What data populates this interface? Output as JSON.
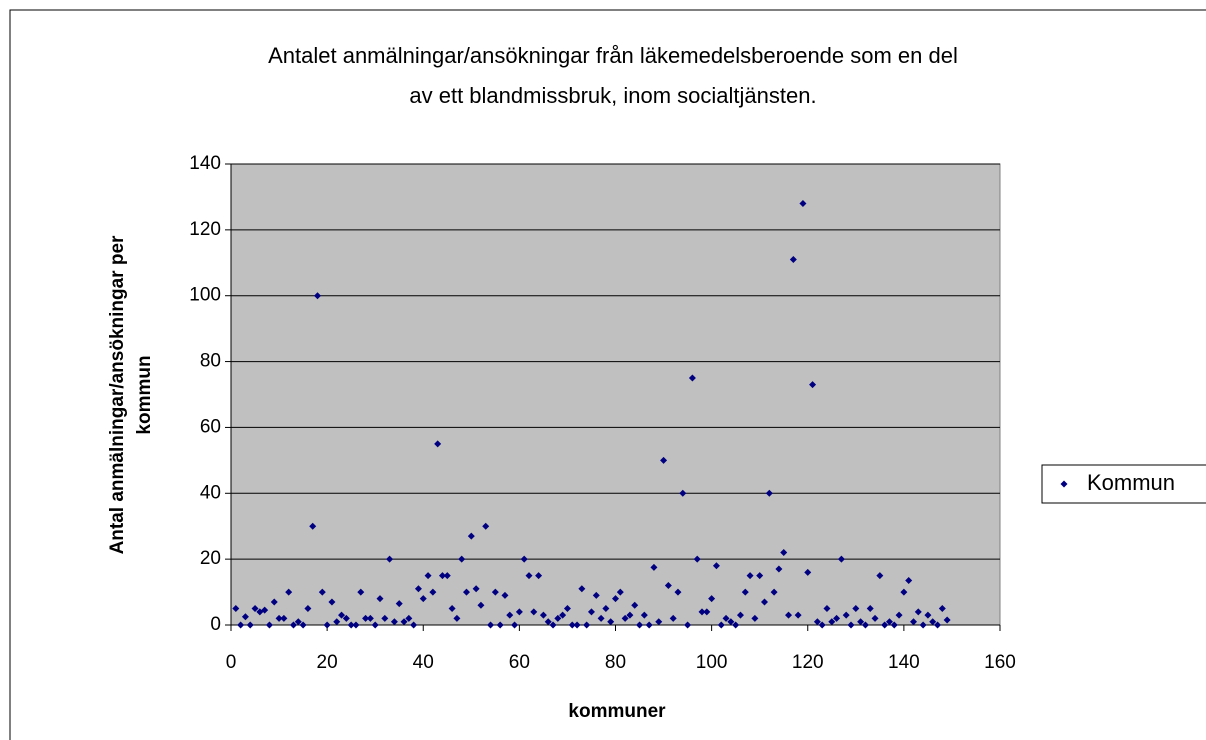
{
  "chart_data": {
    "type": "scatter",
    "title": [
      "Antalet anmälningar/ansökningar från läkemedelsberoende som en del",
      "av ett blandmissbruk, inom socialtjänsten."
    ],
    "xlabel": "kommuner",
    "ylabel": [
      "Antal anmälningar/ansökningar per",
      "kommun"
    ],
    "xlim": [
      0,
      160
    ],
    "xticks": [
      0,
      20,
      40,
      60,
      80,
      100,
      120,
      140,
      160
    ],
    "ylim": [
      0,
      140
    ],
    "yticks": [
      0,
      20,
      40,
      60,
      80,
      100,
      120,
      140
    ],
    "grid": true,
    "legend": "right",
    "series": [
      {
        "name": "Kommun",
        "color": "#000080",
        "x": [
          1,
          2,
          3,
          4,
          5,
          6,
          7,
          8,
          9,
          10,
          11,
          12,
          13,
          14,
          15,
          16,
          17,
          18,
          19,
          20,
          21,
          22,
          23,
          24,
          25,
          26,
          27,
          28,
          29,
          30,
          31,
          32,
          33,
          34,
          35,
          36,
          37,
          38,
          39,
          40,
          41,
          42,
          43,
          44,
          45,
          46,
          47,
          48,
          49,
          50,
          51,
          52,
          53,
          54,
          55,
          56,
          57,
          58,
          59,
          60,
          61,
          62,
          63,
          64,
          65,
          66,
          67,
          68,
          69,
          70,
          71,
          72,
          73,
          74,
          75,
          76,
          77,
          78,
          79,
          80,
          81,
          82,
          83,
          84,
          85,
          86,
          87,
          88,
          89,
          90,
          91,
          92,
          93,
          94,
          95,
          96,
          97,
          98,
          99,
          100,
          101,
          102,
          103,
          104,
          105,
          106,
          107,
          108,
          109,
          110,
          111,
          112,
          113,
          114,
          115,
          116,
          117,
          118,
          119,
          120,
          121,
          122,
          123,
          124,
          125,
          126,
          127,
          128,
          129,
          130,
          131,
          132,
          133,
          134,
          135,
          136,
          137,
          138,
          139,
          140,
          141,
          142,
          143,
          144,
          145,
          146,
          147,
          148,
          149
        ],
        "values": [
          5,
          0,
          2.5,
          0,
          5,
          4,
          4.5,
          0,
          7,
          2,
          2,
          10,
          0,
          1,
          0,
          5,
          30,
          100,
          10,
          0,
          7,
          1,
          3,
          2,
          0,
          0,
          10,
          2,
          2,
          0,
          8,
          2,
          20,
          1,
          6.5,
          1,
          2,
          0,
          11,
          8,
          15,
          10,
          55,
          15,
          15,
          5,
          2,
          20,
          10,
          27,
          11,
          6,
          30,
          0,
          10,
          0,
          9,
          3,
          0,
          4,
          20,
          15,
          4,
          15,
          3,
          1,
          0,
          2,
          3,
          5,
          0,
          0,
          11,
          0,
          4,
          9,
          2,
          5,
          1,
          8,
          10,
          2,
          3,
          6,
          0,
          3,
          0,
          17.5,
          1,
          50,
          12,
          2,
          10,
          40,
          0,
          75,
          20,
          4,
          4,
          8,
          18,
          0,
          2,
          1,
          0,
          3,
          10,
          15,
          2,
          15,
          7,
          40,
          10,
          17,
          22,
          3,
          111,
          3,
          128,
          16,
          73,
          1,
          0,
          5,
          1,
          2,
          20,
          3,
          0,
          5,
          1,
          0,
          5,
          2,
          15,
          0,
          1,
          0,
          3,
          10,
          13.5,
          1,
          4,
          0,
          3,
          1,
          0,
          5,
          1.5
        ]
      }
    ]
  }
}
